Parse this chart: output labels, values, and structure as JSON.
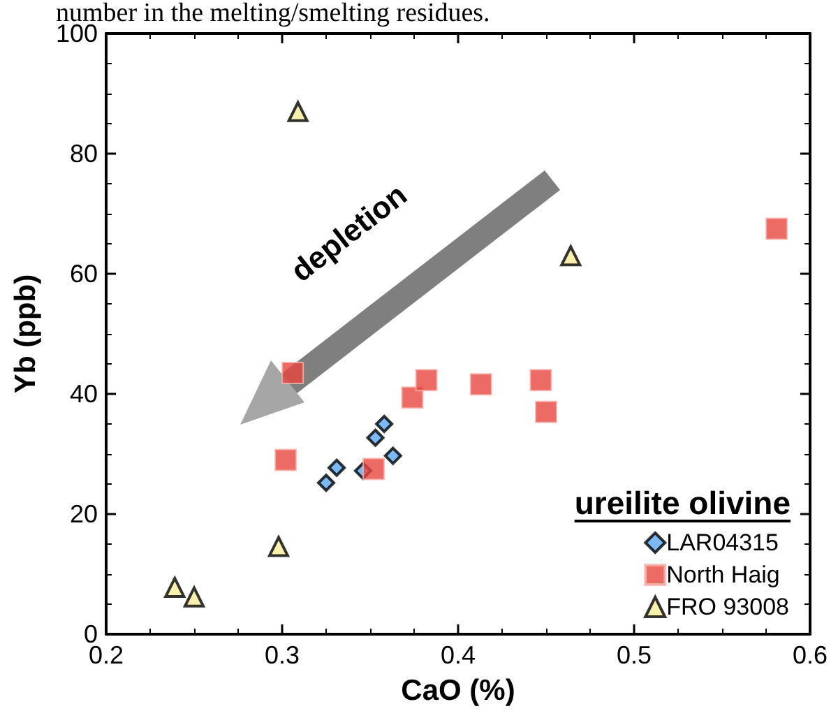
{
  "chart_data": {
    "type": "scatter",
    "xlabel": "CaO (%)",
    "ylabel": "Yb (ppb)",
    "legend_title": "ureilite olivine",
    "legend": "bottom right",
    "grid": false,
    "annotations": [
      "number in the melting/smelting residues.",
      "depletion"
    ],
    "xlim": [
      0.2,
      0.6
    ],
    "xticks": [
      0.2,
      0.3,
      0.4,
      0.5,
      0.6
    ],
    "ylim": [
      0,
      100
    ],
    "yticks": [
      0,
      20,
      40,
      60,
      80,
      100
    ],
    "series": [
      {
        "name": "LAR04315",
        "color": "#5aa8f0",
        "marker": "diamond",
        "x": [
          0.325,
          0.331,
          0.346,
          0.353,
          0.358,
          0.363
        ],
        "values": [
          25.2,
          27.7,
          27.2,
          32.7,
          35,
          29.7
        ]
      },
      {
        "name": "North Haig",
        "color": "#e8463f",
        "marker": "square",
        "x": [
          0.306,
          0.302,
          0.352,
          0.374,
          0.382,
          0.413,
          0.447,
          0.45,
          0.581
        ],
        "values": [
          43.5,
          29,
          27.5,
          39.4,
          42.3,
          41.6,
          42.3,
          37,
          67.5
        ]
      },
      {
        "name": "FRO 93008",
        "color": "#f5ec9a",
        "marker": "triangle",
        "x": [
          0.239,
          0.25,
          0.298,
          0.309,
          0.464
        ],
        "values": [
          7.8,
          6.2,
          14.6,
          87,
          63
        ]
      }
    ]
  }
}
